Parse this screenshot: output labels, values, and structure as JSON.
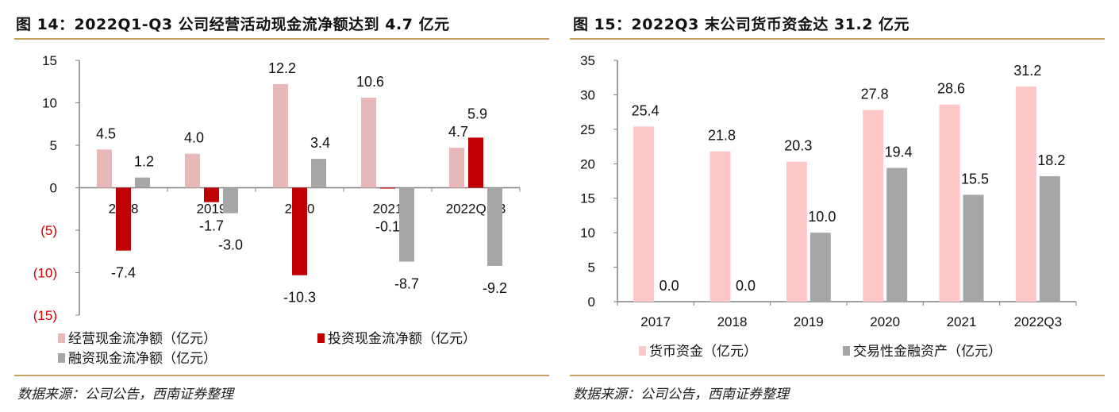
{
  "left": {
    "title": "图 14：2022Q1-Q3 公司经营活动现金流净额达到 4.7 亿元",
    "source": "数据来源：公司公告，西南证券整理"
  },
  "right": {
    "title": "图 15：2022Q3 末公司货币资金达 31.2 亿元",
    "source": "数据来源：公司公告，西南证券整理"
  },
  "chart_data": [
    {
      "type": "bar",
      "categories": [
        "2018",
        "2019",
        "2020",
        "2021",
        "2022Q1-3"
      ],
      "ylim": [
        -15,
        15
      ],
      "yticks": [
        15,
        10,
        5,
        0,
        -5,
        -10,
        -15
      ],
      "ytick_labels": [
        "15",
        "10",
        "5",
        "0",
        "(5)",
        "(10)",
        "(15)"
      ],
      "negative_tick_color": "#d00000",
      "legend_position": "bottom",
      "grid": false,
      "series": [
        {
          "name": "经营现金流净额（亿元）",
          "color": "#e6b8b7",
          "values": [
            4.5,
            4.0,
            12.2,
            10.6,
            4.7
          ],
          "labels": [
            "4.5",
            "4.0",
            "12.2",
            "10.6",
            "4.7"
          ]
        },
        {
          "name": "投资现金流净额（亿元）",
          "color": "#c00000",
          "values": [
            -7.4,
            -1.7,
            -10.3,
            -0.1,
            5.9
          ],
          "labels": [
            "-7.4",
            "-1.7",
            "-10.3",
            "-0.1",
            "5.9"
          ]
        },
        {
          "name": "融资现金流净额（亿元）",
          "color": "#a6a6a6",
          "values": [
            1.2,
            -3.0,
            3.4,
            -8.7,
            -9.2
          ],
          "labels": [
            "1.2",
            "-3.0",
            "3.4",
            "-8.7",
            "-9.2"
          ]
        }
      ]
    },
    {
      "type": "bar",
      "categories": [
        "2017",
        "2018",
        "2019",
        "2020",
        "2021",
        "2022Q3"
      ],
      "ylim": [
        0,
        35
      ],
      "yticks": [
        35,
        30,
        25,
        20,
        15,
        10,
        5,
        0
      ],
      "ytick_labels": [
        "35",
        "30",
        "25",
        "20",
        "15",
        "10",
        "5",
        "0"
      ],
      "legend_position": "bottom",
      "grid": false,
      "series": [
        {
          "name": "货币资金（亿元）",
          "color": "#ffc7c7",
          "values": [
            25.4,
            21.8,
            20.3,
            27.8,
            28.6,
            31.2
          ],
          "labels": [
            "25.4",
            "21.8",
            "20.3",
            "27.8",
            "28.6",
            "31.2"
          ]
        },
        {
          "name": "交易性金融资产（亿元）",
          "color": "#a6a6a6",
          "values": [
            0.0,
            0.0,
            10.0,
            19.4,
            15.5,
            18.2
          ],
          "labels": [
            "0.0",
            "0.0",
            "10.0",
            "19.4",
            "15.5",
            "18.2"
          ]
        }
      ]
    }
  ]
}
